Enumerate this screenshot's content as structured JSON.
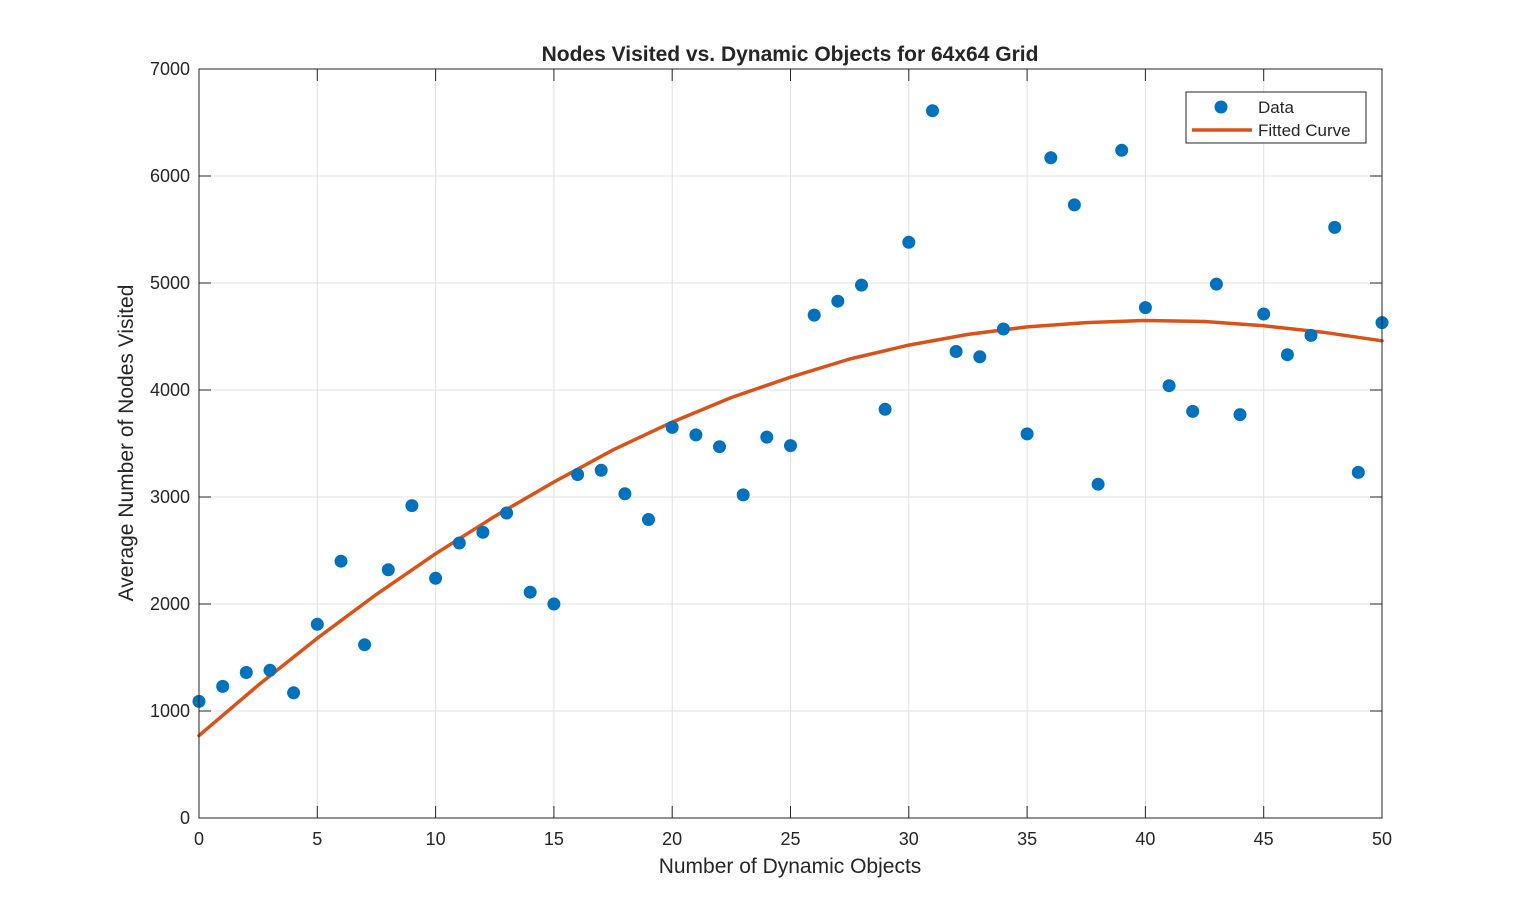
{
  "chart_data": {
    "type": "scatter",
    "title": "Nodes Visited vs. Dynamic Objects for 64x64 Grid",
    "xlabel": "Number of Dynamic Objects",
    "ylabel": "Average Number of Nodes Visited",
    "xlim": [
      0,
      50
    ],
    "ylim": [
      0,
      7000
    ],
    "xticks": [
      0,
      5,
      10,
      15,
      20,
      25,
      30,
      35,
      40,
      45,
      50
    ],
    "yticks": [
      0,
      1000,
      2000,
      3000,
      4000,
      5000,
      6000,
      7000
    ],
    "xtick_labels": [
      "0",
      "5",
      "10",
      "15",
      "20",
      "25",
      "30",
      "35",
      "40",
      "45",
      "50"
    ],
    "ytick_labels": [
      "0",
      "1000",
      "2000",
      "3000",
      "4000",
      "5000",
      "6000",
      "7000"
    ],
    "grid": true,
    "legend_position": "top-right",
    "series": [
      {
        "name": "Data",
        "kind": "markers",
        "color": "#0072BD",
        "x": [
          0,
          1,
          2,
          3,
          4,
          5,
          6,
          7,
          8,
          9,
          10,
          11,
          12,
          13,
          14,
          15,
          16,
          17,
          18,
          19,
          20,
          21,
          22,
          23,
          24,
          25,
          26,
          27,
          28,
          29,
          30,
          31,
          32,
          33,
          34,
          35,
          36,
          37,
          38,
          39,
          40,
          41,
          42,
          43,
          44,
          45,
          46,
          47,
          48,
          49,
          50
        ],
        "y": [
          1090,
          1230,
          1360,
          1380,
          1170,
          1810,
          2400,
          1620,
          2320,
          2920,
          2240,
          2570,
          2670,
          2850,
          2110,
          2000,
          3210,
          3250,
          3030,
          2790,
          3650,
          3580,
          3470,
          3020,
          3560,
          3480,
          4700,
          4830,
          4980,
          3820,
          5380,
          6610,
          4360,
          4310,
          4570,
          3590,
          6170,
          5730,
          3120,
          6240,
          4770,
          4040,
          3800,
          4990,
          3770,
          4710,
          4330,
          4510,
          5520,
          3230,
          4630
        ]
      },
      {
        "name": "Fitted Curve",
        "kind": "line",
        "color": "#D95319",
        "x": [
          0,
          2.5,
          5,
          7.5,
          10,
          12.5,
          15,
          17.5,
          20,
          22.5,
          25,
          27.5,
          30,
          32.5,
          35,
          37.5,
          40,
          42.5,
          45,
          47.5,
          50
        ],
        "y": [
          770,
          1240,
          1680,
          2090,
          2470,
          2820,
          3140,
          3440,
          3700,
          3930,
          4120,
          4290,
          4420,
          4520,
          4590,
          4630,
          4650,
          4640,
          4600,
          4540,
          4460
        ]
      }
    ]
  }
}
